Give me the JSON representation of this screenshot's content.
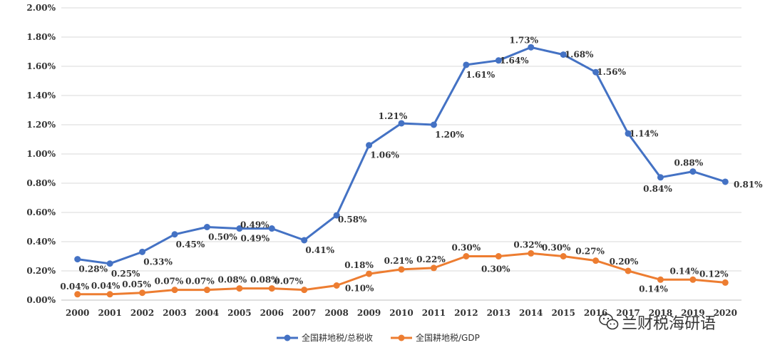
{
  "chart_data": {
    "type": "line",
    "title": "",
    "xlabel": "",
    "ylabel": "",
    "ylim": [
      0,
      2.0
    ],
    "yticks": [
      "0.00%",
      "0.20%",
      "0.40%",
      "0.60%",
      "0.80%",
      "1.00%",
      "1.20%",
      "1.40%",
      "1.60%",
      "1.80%",
      "2.00%"
    ],
    "categories": [
      "2000",
      "2001",
      "2002",
      "2003",
      "2004",
      "2005",
      "2006",
      "2007",
      "2008",
      "2009",
      "2010",
      "2011",
      "2012",
      "2013",
      "2014",
      "2015",
      "2016",
      "2017",
      "2018",
      "2019",
      "2020"
    ],
    "grid": true,
    "legend_position": "bottom",
    "series": [
      {
        "name": "全国耕地税/总税收",
        "color": "#4472C4",
        "values": [
          0.28,
          0.25,
          0.33,
          0.45,
          0.5,
          0.49,
          0.49,
          0.41,
          0.58,
          1.06,
          1.21,
          1.2,
          1.61,
          1.64,
          1.73,
          1.68,
          1.56,
          1.14,
          0.84,
          0.88,
          0.81
        ],
        "labels": [
          "0.28%",
          "0.25%",
          "0.33%",
          "0.45%",
          "0.50%",
          "0.49%",
          "0.49%",
          "0.41%",
          "0.58%",
          "1.06%",
          "1.21%",
          "1.20%",
          "1.61%",
          "1.64%",
          "1.73%",
          "1.68%",
          "1.56%",
          "1.14%",
          "0.84%",
          "0.88%",
          "0.81%"
        ]
      },
      {
        "name": "全国耕地税/GDP",
        "color": "#ED7D31",
        "values": [
          0.04,
          0.04,
          0.05,
          0.07,
          0.07,
          0.08,
          0.08,
          0.07,
          0.1,
          0.18,
          0.21,
          0.22,
          0.3,
          0.3,
          0.32,
          0.3,
          0.27,
          0.2,
          0.14,
          0.14,
          0.12
        ],
        "labels": [
          "0.04%",
          "0.04%",
          "0.05%",
          "0.07%",
          "0.07%",
          "0.08%",
          "0.08%",
          "0.07%",
          "0.10%",
          "0.18%",
          "0.21%",
          "0.22%",
          "0.30%",
          "0.30%",
          "0.32%",
          "0.30%",
          "0.27%",
          "0.20%",
          "0.14%",
          "0.14%",
          "0.12%"
        ]
      }
    ]
  },
  "watermark": {
    "text": "兰财税海研语",
    "icon": "wechat-icon"
  }
}
